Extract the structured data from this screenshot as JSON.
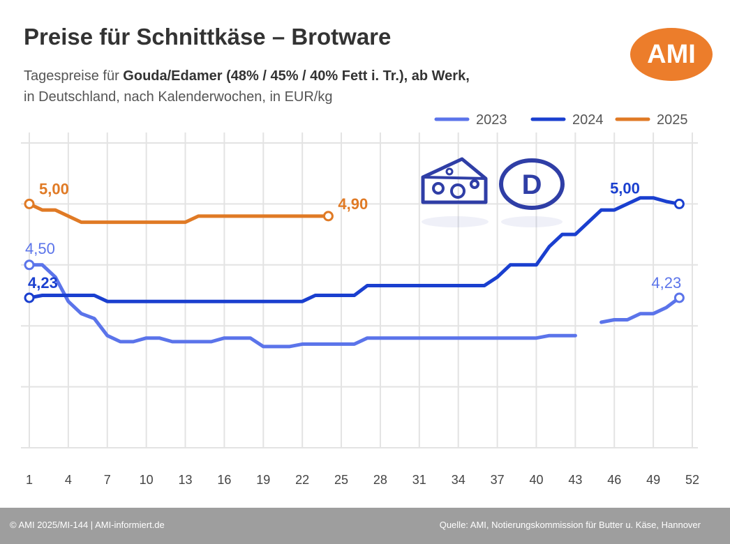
{
  "header": {
    "title": "Preise für Schnittkäse – Brotware",
    "subtitle_prefix": "Tagespreise für ",
    "subtitle_bold": "Gouda/Edamer (48% / 45% / 40% Fett i. Tr.), ab Werk,",
    "subtitle_line2": "in Deutschland, nach Kalenderwochen, in EUR/kg",
    "logo_text": "AMI"
  },
  "footer": {
    "left": "© AMI 2025/MI-144 | AMI-informiert.de",
    "right": "Quelle: AMI, Notierungskommission für Butter u. Käse, Hannover"
  },
  "colors": {
    "s2023": "#5b74ea",
    "s2024": "#1a3fcf",
    "s2025": "#e07a25",
    "grid": "#e3e3e3",
    "accent": "#ec7d2b",
    "icons": "#2f3ea6"
  },
  "icons": [
    "cheese-icon",
    "country-code-d-icon"
  ],
  "chart_data": {
    "type": "line",
    "title": "Preise für Schnittkäse – Brotware",
    "xlabel": "",
    "ylabel": "",
    "x_ticks": [
      1,
      4,
      7,
      10,
      13,
      16,
      19,
      22,
      25,
      28,
      31,
      34,
      37,
      40,
      43,
      46,
      49,
      52
    ],
    "xlim": [
      1,
      52
    ],
    "ylim": [
      3.0,
      5.5
    ],
    "grid": true,
    "legend_position": "top-right",
    "icon_label": "D",
    "series": [
      {
        "name": "2023",
        "color": "#5b74ea",
        "points": [
          [
            1,
            4.5
          ],
          [
            2,
            4.5
          ],
          [
            3,
            4.4
          ],
          [
            4,
            4.2
          ],
          [
            5,
            4.1
          ],
          [
            6,
            4.06
          ],
          [
            7,
            3.92
          ],
          [
            8,
            3.87
          ],
          [
            9,
            3.87
          ],
          [
            10,
            3.9
          ],
          [
            11,
            3.9
          ],
          [
            12,
            3.87
          ],
          [
            13,
            3.87
          ],
          [
            14,
            3.87
          ],
          [
            15,
            3.87
          ],
          [
            16,
            3.9
          ],
          [
            17,
            3.9
          ],
          [
            18,
            3.9
          ],
          [
            19,
            3.83
          ],
          [
            20,
            3.83
          ],
          [
            21,
            3.83
          ],
          [
            22,
            3.85
          ],
          [
            23,
            3.85
          ],
          [
            24,
            3.85
          ],
          [
            25,
            3.85
          ],
          [
            26,
            3.85
          ],
          [
            27,
            3.9
          ],
          [
            28,
            3.9
          ],
          [
            29,
            3.9
          ],
          [
            30,
            3.9
          ],
          [
            31,
            3.9
          ],
          [
            32,
            3.9
          ],
          [
            33,
            3.9
          ],
          [
            34,
            3.9
          ],
          [
            35,
            3.9
          ],
          [
            36,
            3.9
          ],
          [
            37,
            3.9
          ],
          [
            38,
            3.9
          ],
          [
            39,
            3.9
          ],
          [
            40,
            3.9
          ],
          [
            41,
            3.92
          ],
          [
            42,
            3.92
          ],
          [
            43,
            3.92
          ],
          [
            44,
            null
          ],
          [
            45,
            4.03
          ],
          [
            46,
            4.05
          ],
          [
            47,
            4.05
          ],
          [
            48,
            4.1
          ],
          [
            49,
            4.1
          ],
          [
            50,
            4.15
          ],
          [
            51,
            4.23
          ]
        ],
        "labels": [
          {
            "x": 1,
            "text": "4,50"
          },
          {
            "x": 51,
            "text": "4,23"
          }
        ]
      },
      {
        "name": "2024",
        "color": "#1a3fcf",
        "points": [
          [
            1,
            4.23
          ],
          [
            2,
            4.25
          ],
          [
            3,
            4.25
          ],
          [
            4,
            4.25
          ],
          [
            5,
            4.25
          ],
          [
            6,
            4.25
          ],
          [
            7,
            4.2
          ],
          [
            8,
            4.2
          ],
          [
            9,
            4.2
          ],
          [
            10,
            4.2
          ],
          [
            11,
            4.2
          ],
          [
            12,
            4.2
          ],
          [
            13,
            4.2
          ],
          [
            14,
            4.2
          ],
          [
            15,
            4.2
          ],
          [
            16,
            4.2
          ],
          [
            17,
            4.2
          ],
          [
            18,
            4.2
          ],
          [
            19,
            4.2
          ],
          [
            20,
            4.2
          ],
          [
            21,
            4.2
          ],
          [
            22,
            4.2
          ],
          [
            23,
            4.25
          ],
          [
            24,
            4.25
          ],
          [
            25,
            4.25
          ],
          [
            26,
            4.25
          ],
          [
            27,
            4.33
          ],
          [
            28,
            4.33
          ],
          [
            29,
            4.33
          ],
          [
            30,
            4.33
          ],
          [
            31,
            4.33
          ],
          [
            32,
            4.33
          ],
          [
            33,
            4.33
          ],
          [
            34,
            4.33
          ],
          [
            35,
            4.33
          ],
          [
            36,
            4.33
          ],
          [
            37,
            4.4
          ],
          [
            38,
            4.5
          ],
          [
            39,
            4.5
          ],
          [
            40,
            4.5
          ],
          [
            41,
            4.65
          ],
          [
            42,
            4.75
          ],
          [
            43,
            4.75
          ],
          [
            44,
            4.85
          ],
          [
            45,
            4.95
          ],
          [
            46,
            4.95
          ],
          [
            47,
            5.0
          ],
          [
            48,
            5.05
          ],
          [
            49,
            5.05
          ],
          [
            50,
            5.02
          ],
          [
            51,
            5.0
          ]
        ],
        "labels": [
          {
            "x": 1,
            "text": "4,23"
          },
          {
            "x": 48,
            "text": "5,00"
          }
        ]
      },
      {
        "name": "2025",
        "color": "#e07a25",
        "points": [
          [
            1,
            5.0
          ],
          [
            2,
            4.95
          ],
          [
            3,
            4.95
          ],
          [
            4,
            4.9
          ],
          [
            5,
            4.85
          ],
          [
            6,
            4.85
          ],
          [
            7,
            4.85
          ],
          [
            8,
            4.85
          ],
          [
            9,
            4.85
          ],
          [
            10,
            4.85
          ],
          [
            11,
            4.85
          ],
          [
            12,
            4.85
          ],
          [
            13,
            4.85
          ],
          [
            14,
            4.9
          ],
          [
            15,
            4.9
          ],
          [
            16,
            4.9
          ],
          [
            17,
            4.9
          ],
          [
            18,
            4.9
          ],
          [
            19,
            4.9
          ],
          [
            20,
            4.9
          ],
          [
            21,
            4.9
          ],
          [
            22,
            4.9
          ],
          [
            23,
            4.9
          ],
          [
            24,
            4.9
          ]
        ],
        "labels": [
          {
            "x": 1,
            "text": "5,00"
          },
          {
            "x": 24,
            "text": "4,90"
          }
        ]
      }
    ]
  }
}
